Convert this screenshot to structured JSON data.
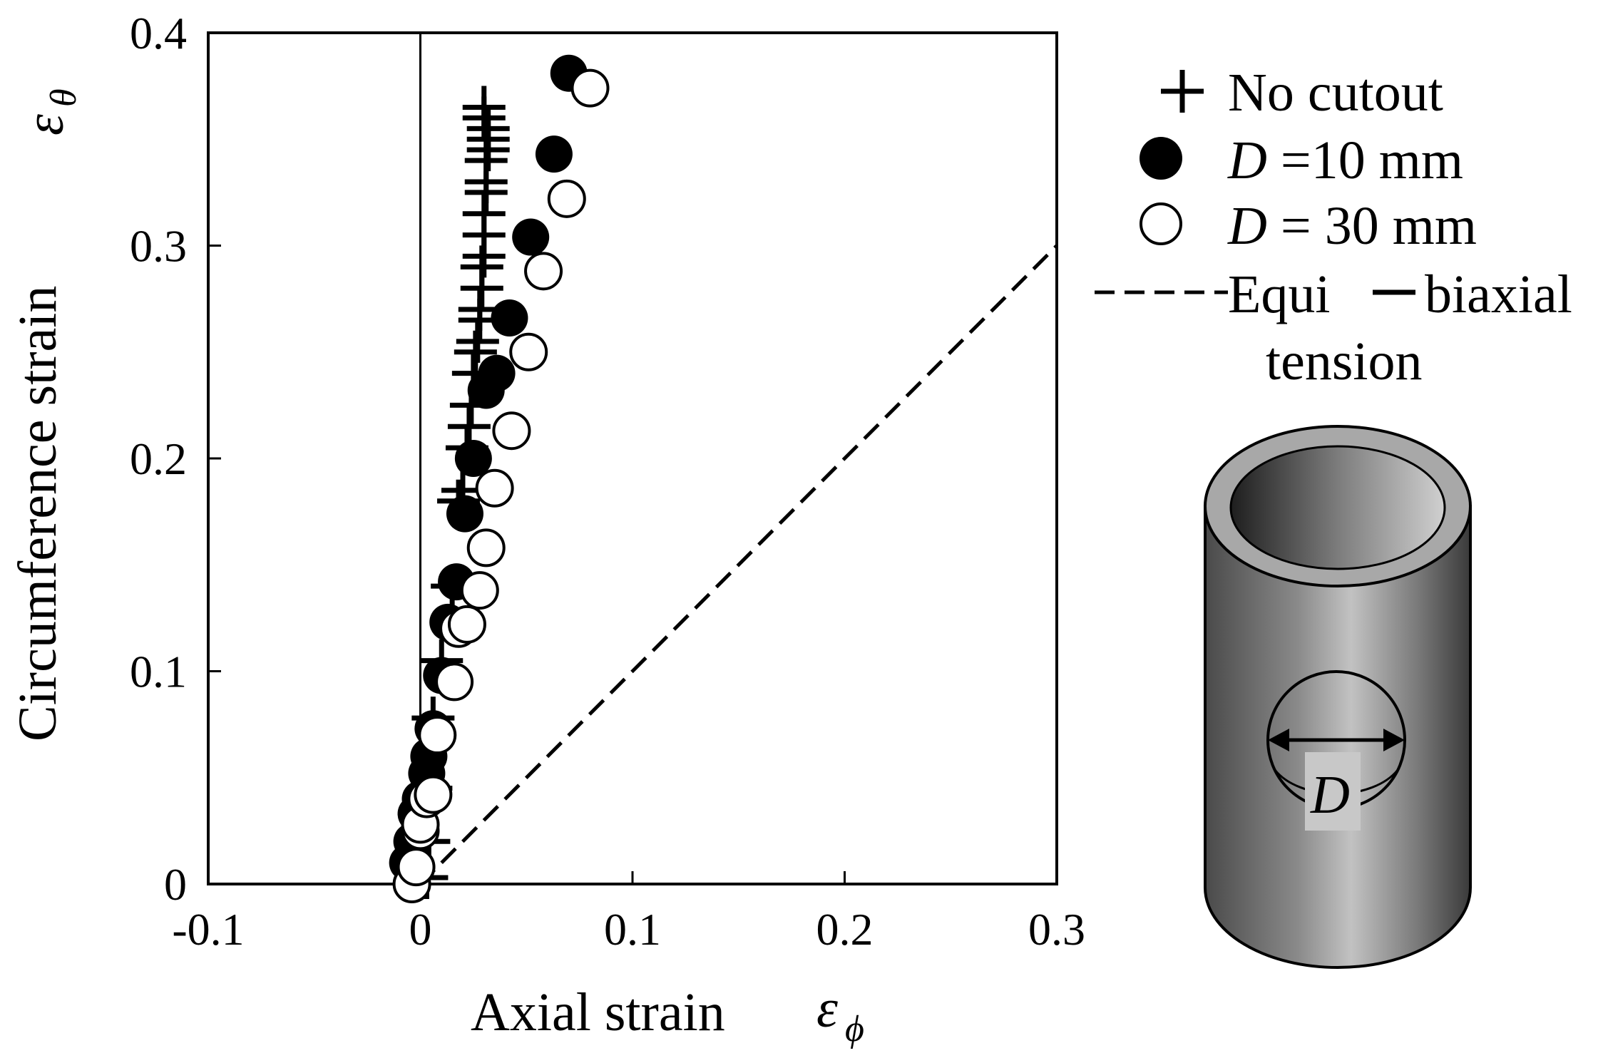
{
  "chart_data": {
    "type": "scatter",
    "title": "",
    "xlabel": "Axial strain",
    "xlabel_symbol": "ε",
    "xlabel_subscript": "ϕ",
    "ylabel": "Circumference strain",
    "ylabel_symbol": "ε",
    "ylabel_subscript": "θ",
    "xlim": [
      -0.1,
      0.3
    ],
    "ylim": [
      0,
      0.4
    ],
    "x_ticks": [
      -0.1,
      0,
      0.1,
      0.2,
      0.3
    ],
    "x_tick_labels": [
      "-0.1",
      "0",
      "0.1",
      "0.2",
      "0.3"
    ],
    "y_ticks": [
      0,
      0.1,
      0.2,
      0.3,
      0.4
    ],
    "y_tick_labels": [
      "0",
      "0.1",
      "0.2",
      "0.3",
      "0.4"
    ],
    "grid": false,
    "zero_line_x": 0,
    "legend_position": "right",
    "series": [
      {
        "name": "No cutout",
        "marker": "plus",
        "x": [
          0.003,
          0.004,
          0.005,
          0.006,
          0.01,
          0.015,
          0.018,
          0.02,
          0.022,
          0.023,
          0.024,
          0.025,
          0.026,
          0.027,
          0.028,
          0.028,
          0.029,
          0.029,
          0.03,
          0.03,
          0.03,
          0.031,
          0.031,
          0.031,
          0.032,
          0.032,
          0.032,
          0.03,
          0.03
        ],
        "y": [
          0.003,
          0.02,
          0.045,
          0.078,
          0.105,
          0.14,
          0.18,
          0.185,
          0.205,
          0.215,
          0.225,
          0.24,
          0.25,
          0.255,
          0.265,
          0.27,
          0.28,
          0.29,
          0.295,
          0.305,
          0.315,
          0.325,
          0.33,
          0.34,
          0.345,
          0.35,
          0.355,
          0.36,
          0.365
        ]
      },
      {
        "name": "D =10 mm",
        "marker": "filled-circle",
        "x": [
          -0.006,
          -0.004,
          -0.002,
          0.0,
          0.003,
          0.004,
          0.006,
          0.01,
          0.013,
          0.017,
          0.021,
          0.025,
          0.031,
          0.036,
          0.042,
          0.052,
          0.063,
          0.07
        ],
        "y": [
          0.01,
          0.02,
          0.033,
          0.04,
          0.052,
          0.06,
          0.073,
          0.098,
          0.123,
          0.142,
          0.174,
          0.2,
          0.232,
          0.24,
          0.266,
          0.304,
          0.343,
          0.381
        ]
      },
      {
        "name": "D = 30 mm",
        "marker": "open-circle",
        "x": [
          -0.004,
          -0.002,
          0.0,
          0.0,
          0.003,
          0.006,
          0.008,
          0.016,
          0.018,
          0.022,
          0.028,
          0.031,
          0.035,
          0.043,
          0.051,
          0.058,
          0.069,
          0.08
        ],
        "y": [
          0.0,
          0.008,
          0.025,
          0.028,
          0.04,
          0.042,
          0.07,
          0.095,
          0.12,
          0.122,
          0.138,
          0.158,
          0.186,
          0.213,
          0.25,
          0.288,
          0.322,
          0.374
        ]
      },
      {
        "name": "Equi",
        "marker": "dashed-line",
        "x": [
          0,
          0.3
        ],
        "y": [
          0,
          0.3
        ]
      }
    ],
    "legend": [
      {
        "marker": "plus",
        "label": "No cutout"
      },
      {
        "marker": "filled-circle",
        "label_symbol": "D",
        "label_rest": " =10 mm"
      },
      {
        "marker": "open-circle",
        "label_symbol": "D",
        "label_rest": " = 30 mm"
      },
      {
        "marker": "dashed-line",
        "label_part1": "Equi",
        "label_part2": "biaxial",
        "label_line2": "tension"
      }
    ],
    "inset": {
      "type": "cylinder-illustration",
      "label": "D"
    }
  },
  "colors": {
    "ink": "#000000",
    "cylinder_outer_dark": "#4a4a4a",
    "cylinder_outer_light": "#bfbfbf",
    "rim": "#a8a8a8",
    "hole_label_bg": "#c8c8c8"
  }
}
